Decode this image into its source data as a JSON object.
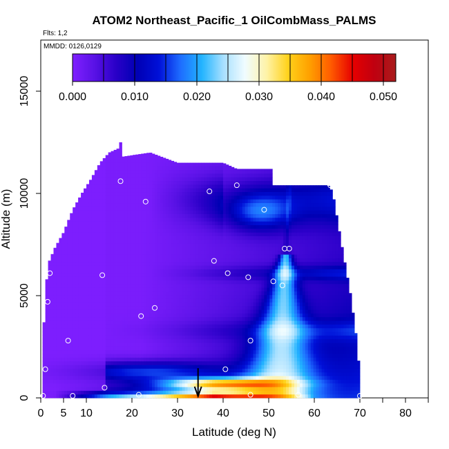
{
  "chart_data": {
    "type": "heatmap",
    "title": "ATOM2 Northeast_Pacific_1 OilCombMass_PALMS",
    "subtitle_flights": "Flts: 1,2",
    "subtitle_dates": "MMDD: 0126,0129",
    "xlabel": "Latitude (deg N)",
    "ylabel": "Altitude (m)",
    "xlim": [
      0,
      85
    ],
    "ylim": [
      0,
      17500
    ],
    "x_ticks": [
      0,
      5,
      10,
      20,
      30,
      40,
      50,
      60,
      70,
      80
    ],
    "y_ticks": [
      0,
      5000,
      10000,
      15000
    ],
    "colorbar": {
      "min": 0.0,
      "max": 0.052,
      "ticks": [
        0.0,
        0.01,
        0.02,
        0.03,
        0.04,
        0.05
      ],
      "tick_labels": [
        "0.000",
        "0.010",
        "0.020",
        "0.030",
        "0.040",
        "0.050"
      ],
      "colors": [
        "#7f1fff",
        "#5a12e6",
        "#2a00c8",
        "#0000b4",
        "#0010d8",
        "#1e6cff",
        "#22b4ff",
        "#a8e0ff",
        "#f0fcff",
        "#fff3a8",
        "#ffd21a",
        "#ffa000",
        "#ff5a00",
        "#e60000",
        "#c00010",
        "#a81c1c"
      ]
    },
    "envelope_top": [
      [
        0.5,
        3000
      ],
      [
        1.5,
        6500
      ],
      [
        3,
        7300
      ],
      [
        5,
        8100
      ],
      [
        7,
        9200
      ],
      [
        9,
        10000
      ],
      [
        11,
        10700
      ],
      [
        13,
        11500
      ],
      [
        15,
        12000
      ],
      [
        17,
        12200
      ],
      [
        17.5,
        12500
      ],
      [
        18,
        11800
      ],
      [
        24,
        12000
      ],
      [
        30,
        11500
      ],
      [
        40,
        11500
      ],
      [
        43,
        11200
      ],
      [
        51,
        11200
      ],
      [
        51,
        10400
      ],
      [
        63,
        10400
      ],
      [
        64,
        10100
      ],
      [
        66,
        7500
      ],
      [
        68,
        5000
      ],
      [
        69.5,
        2500
      ],
      [
        70,
        800
      ]
    ],
    "cells_description": "Oil combustion mass concentration curtain; mostly low (purple/blue) aloft, highest near surface between 15-50 N",
    "arrow_marker_lat": 34.5,
    "sample_points": [
      {
        "lat": 0.5,
        "alt": 100
      },
      {
        "lat": 1,
        "alt": 1400
      },
      {
        "lat": 1.5,
        "alt": 4700
      },
      {
        "lat": 2,
        "alt": 6100
      },
      {
        "lat": 6,
        "alt": 2800
      },
      {
        "lat": 7,
        "alt": 100
      },
      {
        "lat": 13.5,
        "alt": 6000
      },
      {
        "lat": 14,
        "alt": 500
      },
      {
        "lat": 17.5,
        "alt": 10600
      },
      {
        "lat": 21.5,
        "alt": 150
      },
      {
        "lat": 22,
        "alt": 4000
      },
      {
        "lat": 23,
        "alt": 9600
      },
      {
        "lat": 25,
        "alt": 4400
      },
      {
        "lat": 37,
        "alt": 10100
      },
      {
        "lat": 38,
        "alt": 6700
      },
      {
        "lat": 40.5,
        "alt": 1400
      },
      {
        "lat": 41,
        "alt": 6100
      },
      {
        "lat": 43,
        "alt": 10400
      },
      {
        "lat": 45.5,
        "alt": 5900
      },
      {
        "lat": 46,
        "alt": 2800
      },
      {
        "lat": 46,
        "alt": 150
      },
      {
        "lat": 49,
        "alt": 9200
      },
      {
        "lat": 51,
        "alt": 5700
      },
      {
        "lat": 53,
        "alt": 5500
      },
      {
        "lat": 53.5,
        "alt": 7300
      },
      {
        "lat": 54.5,
        "alt": 7300
      },
      {
        "lat": 56.5,
        "alt": 150
      },
      {
        "lat": 63.5,
        "alt": 10400
      },
      {
        "lat": 70,
        "alt": 100
      }
    ]
  }
}
